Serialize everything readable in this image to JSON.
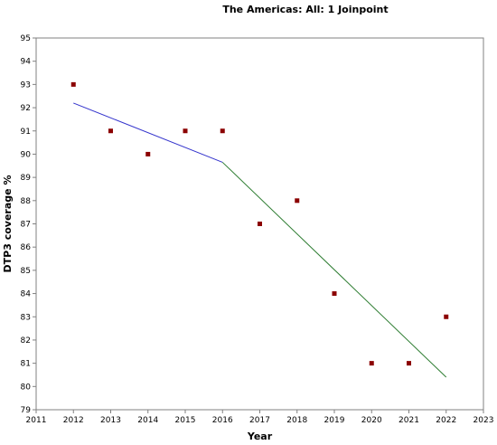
{
  "chart_data": {
    "type": "scatter",
    "title": "The Americas: All: 1 Joinpoint",
    "xlabel": "Year",
    "ylabel": "DTP3 coverage %",
    "xlim": [
      2011,
      2023
    ],
    "ylim": [
      79,
      95
    ],
    "x_ticks": [
      2011,
      2012,
      2013,
      2014,
      2015,
      2016,
      2017,
      2018,
      2019,
      2020,
      2021,
      2022,
      2023
    ],
    "y_ticks": [
      79,
      80,
      81,
      82,
      83,
      84,
      85,
      86,
      87,
      88,
      89,
      90,
      91,
      92,
      93,
      94,
      95
    ],
    "grid": false,
    "observed": {
      "color": "#8b0000",
      "points": [
        {
          "x": 2012,
          "y": 93
        },
        {
          "x": 2013,
          "y": 91
        },
        {
          "x": 2014,
          "y": 90
        },
        {
          "x": 2015,
          "y": 91
        },
        {
          "x": 2016,
          "y": 91
        },
        {
          "x": 2017,
          "y": 87
        },
        {
          "x": 2018,
          "y": 88
        },
        {
          "x": 2019,
          "y": 84
        },
        {
          "x": 2020,
          "y": 81
        },
        {
          "x": 2021,
          "y": 81
        },
        {
          "x": 2022,
          "y": 83
        }
      ]
    },
    "segments": [
      {
        "color": "#3333cc",
        "points": [
          {
            "x": 2012,
            "y": 92.2
          },
          {
            "x": 2016,
            "y": 89.65
          }
        ]
      },
      {
        "color": "#2e7d32",
        "points": [
          {
            "x": 2016,
            "y": 89.65
          },
          {
            "x": 2022,
            "y": 80.4
          }
        ]
      }
    ]
  }
}
